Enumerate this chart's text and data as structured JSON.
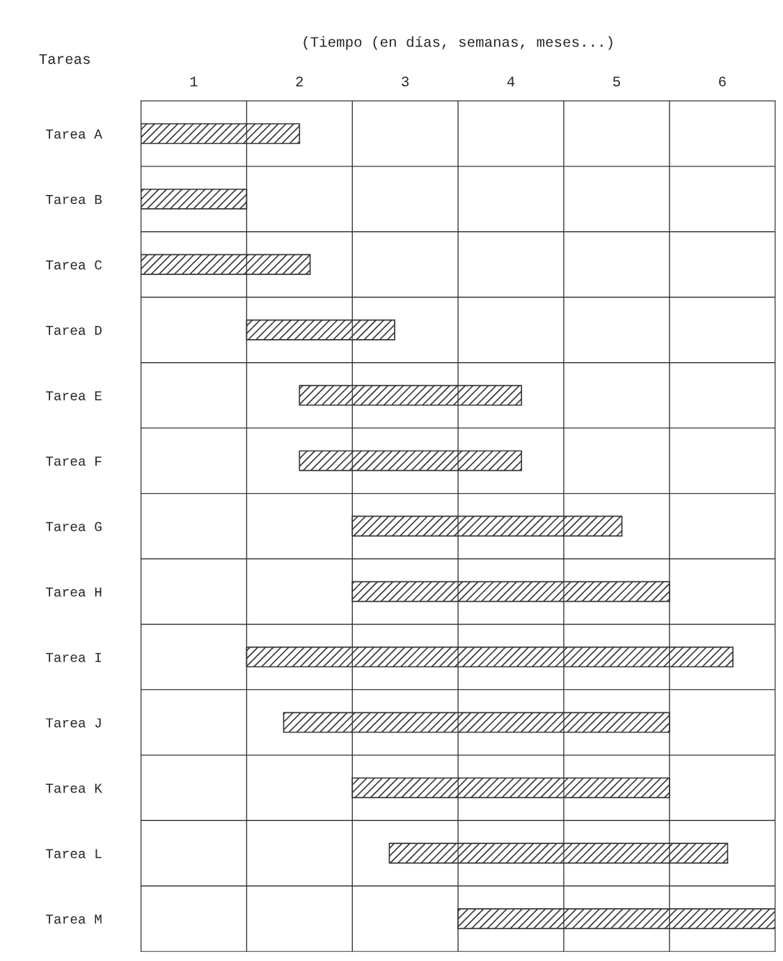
{
  "chart_data": {
    "type": "bar",
    "orientation": "horizontal",
    "xlabel": "(Tiempo (en días, semanas, meses...)",
    "ylabel": "Tareas",
    "categories": [
      "Tarea A",
      "Tarea B",
      "Tarea C",
      "Tarea D",
      "Tarea E",
      "Tarea F",
      "Tarea G",
      "Tarea H",
      "Tarea I",
      "Tarea J",
      "Tarea K",
      "Tarea L",
      "Tarea M"
    ],
    "series": [
      {
        "color": "#333333",
        "base": [
          0,
          0,
          0,
          1,
          1.5,
          1.5,
          2,
          2,
          1,
          1.35,
          2,
          2.35,
          3
        ],
        "values": [
          1.5,
          1,
          1.6,
          1.4,
          2.1,
          2.1,
          2.55,
          3,
          4.6,
          3.65,
          3,
          3.2,
          3
        ]
      }
    ],
    "xlim": [
      0,
      6
    ],
    "xticks": [
      {
        "value": 0,
        "label": null
      },
      {
        "value": 0.5,
        "label": "1"
      },
      {
        "value": 1,
        "label": null
      },
      {
        "value": 1.5,
        "label": "2"
      },
      {
        "value": 2,
        "label": null
      },
      {
        "value": 2.5,
        "label": "3"
      },
      {
        "value": 3,
        "label": null
      },
      {
        "value": 3.5,
        "label": "4"
      },
      {
        "value": 4,
        "label": null
      },
      {
        "value": 4.5,
        "label": "5"
      },
      {
        "value": 5,
        "label": null
      },
      {
        "value": 5.5,
        "label": "6"
      },
      {
        "value": 6,
        "label": null
      }
    ],
    "grid": true
  }
}
